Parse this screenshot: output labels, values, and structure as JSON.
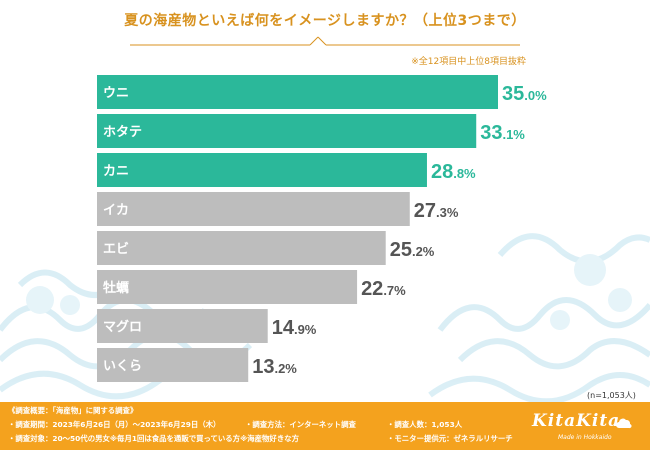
{
  "title": "夏の海産物といえば何をイメージしますか？（上位3つまで）",
  "note": "※全12項目中上位8項目抜粋",
  "sample_note": "(n=1,053人)",
  "colors": {
    "highlight": "#2bb89a",
    "normal": "#bdbdbd",
    "accent": "#f4a21e",
    "title": "#d8921f"
  },
  "chart_data": {
    "type": "bar",
    "orientation": "horizontal",
    "title": "夏の海産物といえば何をイメージしますか？（上位3つまで）",
    "categories": [
      "ウニ",
      "ホタテ",
      "カニ",
      "イカ",
      "エビ",
      "牡蠣",
      "マグロ",
      "いくら"
    ],
    "values": [
      35.0,
      33.1,
      28.8,
      27.3,
      25.2,
      22.7,
      14.9,
      13.2
    ],
    "value_labels": [
      "35.0%",
      "33.1%",
      "28.8%",
      "27.3%",
      "25.2%",
      "22.7%",
      "14.9%",
      "13.2%"
    ],
    "highlighted": [
      true,
      true,
      true,
      false,
      false,
      false,
      false,
      false
    ],
    "unit": "%",
    "xlim": [
      0,
      35.0
    ],
    "xlabel": "",
    "ylabel": ""
  },
  "footer": {
    "line1": "《調査概要：「海産物」に関する調査》",
    "period": "・調査期間：2023年6月26日（月）～2023年6月29日（木）",
    "method": "・調査方法：インターネット調査",
    "count": "・調査人数：1,053人",
    "target": "・調査対象：20～50代の男女※毎月1回は食品を通販で買っている方※海産物好きな方",
    "provider": "・モニター提供元：ゼネラルリサーチ",
    "logo": "KitaKita",
    "logo_sub": "Made in Hokkaido",
    "logo_icon": "cloud-icon"
  }
}
